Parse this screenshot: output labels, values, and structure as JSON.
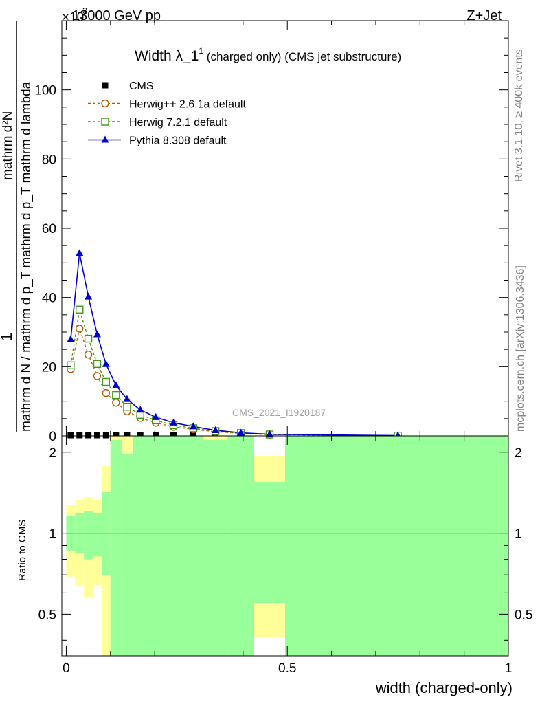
{
  "header": {
    "process": "13000 GeV pp",
    "channel": "Z+Jet",
    "multiplier": "×10",
    "multiplier_exp": "3"
  },
  "side_labels": {
    "rivet": "Rivet 3.1.10, ≥ 400k events",
    "source": "mcplots.cern.ch [arXiv:1306.3436]"
  },
  "chart_data": [
    {
      "type": "line",
      "title": {
        "main": "Width λ_1",
        "sup": "1",
        "rest": " (charged only) (CMS jet substructure)"
      },
      "ylabel": {
        "numerator": "1",
        "denominator": "mathrm d N / mathrm d p_T mathrm d p_T mathrm d lambda",
        "side_top": "mathrm d²N"
      },
      "watermark": "CMS_2021_I1920187",
      "xlim": [
        -0.01,
        1.0
      ],
      "ylim": [
        0,
        120
      ],
      "y_scale_factor": 1000,
      "yticks": [
        0,
        20,
        40,
        60,
        80,
        100
      ],
      "ytick_labels": [
        "0",
        "20",
        "40",
        "60",
        "80",
        "100"
      ],
      "legend_position": "top-left",
      "x": [
        0.01,
        0.03,
        0.05,
        0.07,
        0.09,
        0.1125,
        0.1375,
        0.1675,
        0.2025,
        0.2425,
        0.2875,
        0.3375,
        0.395,
        0.46,
        0.75
      ],
      "series": [
        {
          "name": "CMS",
          "color": "#000000",
          "marker": "square-filled",
          "values": [
            0.2,
            0.2,
            0.2,
            0.2,
            0.2,
            0.2,
            0.2,
            0.2,
            0.2,
            0.2,
            0.2,
            0.2,
            0.2,
            0.2,
            0.1
          ]
        },
        {
          "name": "Herwig++ 2.6.1a default",
          "color": "#b35900",
          "marker": "circle-open",
          "line": "dashed",
          "values": [
            19.3,
            31.0,
            23.5,
            17.3,
            12.4,
            9.6,
            7.1,
            5.2,
            3.8,
            2.6,
            1.9,
            1.2,
            0.7,
            0.35,
            0.06
          ]
        },
        {
          "name": "Herwig 7.2.1 default",
          "color": "#3c9a14",
          "marker": "square-open",
          "line": "dashed",
          "values": [
            20.4,
            36.5,
            28.1,
            20.8,
            15.6,
            11.8,
            8.4,
            6.1,
            4.5,
            3.1,
            2.2,
            1.4,
            0.8,
            0.4,
            0.07
          ]
        },
        {
          "name": "Pythia 8.308 default",
          "color": "#0000cc",
          "marker": "triangle-filled",
          "line": "solid",
          "values": [
            27.9,
            52.8,
            40.2,
            29.3,
            20.7,
            14.6,
            10.6,
            7.5,
            5.4,
            3.8,
            2.7,
            1.6,
            0.9,
            0.45,
            0.08
          ]
        }
      ]
    },
    {
      "type": "area",
      "ylabel": "Ratio to CMS",
      "xlabel": "width (charged-only)",
      "xlim": [
        -0.01,
        1.0
      ],
      "ylim": [
        0.35,
        2.3
      ],
      "scale": "log",
      "xticks": [
        0,
        0.5,
        1
      ],
      "xtick_labels": [
        "0",
        "0.5",
        "1"
      ],
      "yticks": [
        0.5,
        1,
        2
      ],
      "ytick_labels": [
        "0.5",
        "1",
        "2"
      ],
      "reference_line": 1,
      "bands": [
        {
          "name": "stat+syst (outer)",
          "color": "#ffff99",
          "bins": [
            {
              "x0": 0.0,
              "x1": 0.02,
              "lo": 0.69,
              "hi": 1.27
            },
            {
              "x0": 0.02,
              "x1": 0.04,
              "lo": 0.64,
              "hi": 1.33
            },
            {
              "x0": 0.04,
              "x1": 0.06,
              "lo": 0.58,
              "hi": 1.36
            },
            {
              "x0": 0.06,
              "x1": 0.08,
              "lo": 0.64,
              "hi": 1.33
            },
            {
              "x0": 0.08,
              "x1": 0.1,
              "lo": 0.1,
              "hi": 1.78
            },
            {
              "x0": 0.1,
              "x1": 0.125,
              "lo": 0.1,
              "hi": 9.9
            },
            {
              "x0": 0.125,
              "x1": 0.15,
              "lo": 0.1,
              "hi": 9.9
            },
            {
              "x0": 0.15,
              "x1": 0.185,
              "lo": 0.1,
              "hi": 9.9
            },
            {
              "x0": 0.185,
              "x1": 0.22,
              "lo": 0.1,
              "hi": 9.9
            },
            {
              "x0": 0.22,
              "x1": 0.265,
              "lo": 0.1,
              "hi": 9.9
            },
            {
              "x0": 0.265,
              "x1": 0.31,
              "lo": 0.1,
              "hi": 9.9
            },
            {
              "x0": 0.31,
              "x1": 0.365,
              "lo": 0.1,
              "hi": 9.9
            },
            {
              "x0": 0.365,
              "x1": 0.425,
              "lo": 0.1,
              "hi": 9.9
            },
            {
              "x0": 0.425,
              "x1": 0.495,
              "lo": 0.41,
              "hi": 1.93
            },
            {
              "x0": 0.495,
              "x1": 1.0,
              "lo": 0.1,
              "hi": 9.9
            }
          ]
        },
        {
          "name": "stat (inner)",
          "color": "#99ff99",
          "bins": [
            {
              "x0": 0.0,
              "x1": 0.02,
              "lo": 0.86,
              "hi": 1.16
            },
            {
              "x0": 0.02,
              "x1": 0.04,
              "lo": 0.84,
              "hi": 1.19
            },
            {
              "x0": 0.04,
              "x1": 0.06,
              "lo": 0.8,
              "hi": 1.21
            },
            {
              "x0": 0.06,
              "x1": 0.08,
              "lo": 0.82,
              "hi": 1.19
            },
            {
              "x0": 0.08,
              "x1": 0.1,
              "lo": 0.7,
              "hi": 1.42
            },
            {
              "x0": 0.1,
              "x1": 0.125,
              "lo": 0.1,
              "hi": 2.22
            },
            {
              "x0": 0.125,
              "x1": 0.15,
              "lo": 0.1,
              "hi": 1.97
            },
            {
              "x0": 0.15,
              "x1": 0.185,
              "lo": 0.1,
              "hi": 9.9
            },
            {
              "x0": 0.185,
              "x1": 0.22,
              "lo": 0.1,
              "hi": 9.9
            },
            {
              "x0": 0.22,
              "x1": 0.265,
              "lo": 0.1,
              "hi": 9.9
            },
            {
              "x0": 0.265,
              "x1": 0.31,
              "lo": 0.1,
              "hi": 9.9
            },
            {
              "x0": 0.31,
              "x1": 0.365,
              "lo": 0.1,
              "hi": 2.22
            },
            {
              "x0": 0.365,
              "x1": 0.425,
              "lo": 0.1,
              "hi": 9.9
            },
            {
              "x0": 0.425,
              "x1": 0.495,
              "lo": 0.55,
              "hi": 1.55
            },
            {
              "x0": 0.495,
              "x1": 1.0,
              "lo": 0.1,
              "hi": 9.9
            }
          ]
        }
      ]
    }
  ]
}
